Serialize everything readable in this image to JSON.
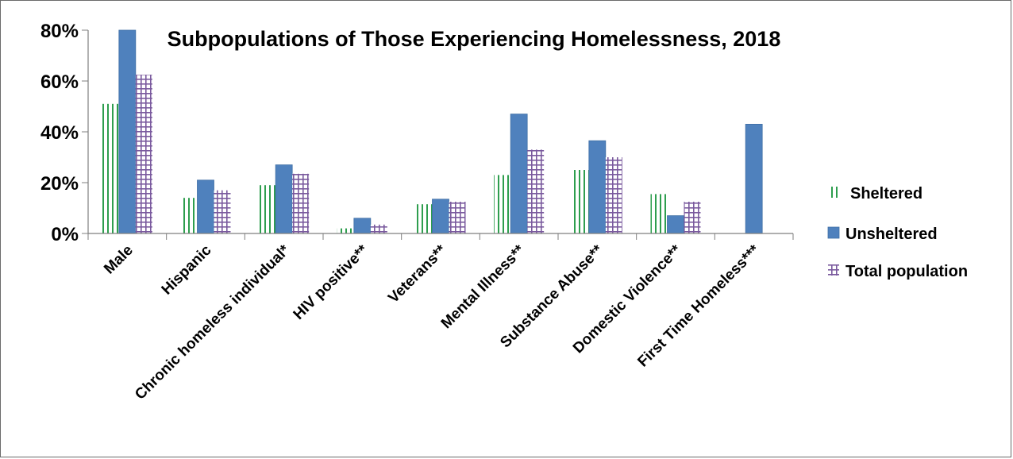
{
  "chart_data": {
    "type": "bar",
    "title": "Subpopulations of Those Experiencing Homelessness, 2018",
    "xlabel": "",
    "ylabel": "",
    "ylim": [
      0,
      80
    ],
    "yticks": [
      "0%",
      "20%",
      "40%",
      "60%",
      "80%"
    ],
    "categories": [
      "Male",
      "Hispanic",
      "Chronic homeless individual*",
      "HIV positive**",
      "Veterans**",
      "Mental Illness**",
      "Substance Abuse**",
      "Domestic Violence**",
      "First Time Homeless***"
    ],
    "series": [
      {
        "name": "Sheltered",
        "values": [
          51,
          14,
          19,
          2,
          11.5,
          23,
          25,
          15.5,
          null
        ],
        "color": "#2e9e4e",
        "pattern": "vertical-lines"
      },
      {
        "name": "Unsheltered",
        "values": [
          80,
          21,
          27,
          6,
          13.5,
          47,
          36.5,
          7,
          43
        ],
        "color": "#4f81bd",
        "pattern": "solid"
      },
      {
        "name": "Total population",
        "values": [
          62.5,
          17,
          23.5,
          3.5,
          12.5,
          33,
          30,
          12.5,
          null
        ],
        "color": "#7a5a9e",
        "pattern": "grid"
      }
    ],
    "grid": false,
    "legend": "right"
  }
}
